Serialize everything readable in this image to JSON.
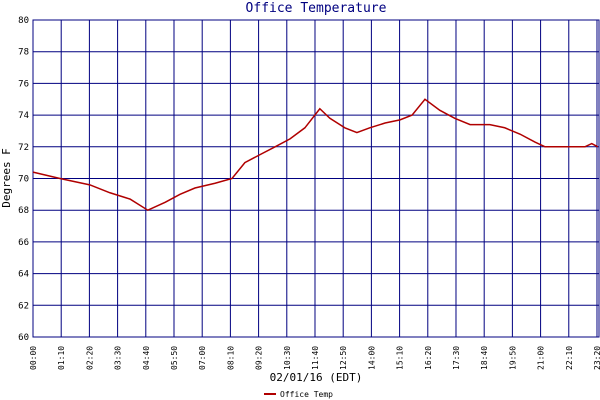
{
  "chart_data": {
    "type": "line",
    "title": "Office Temperature",
    "y_label": "Degrees F",
    "x_label": "02/01/16 (EDT)",
    "x": [
      0,
      67,
      141,
      191,
      241,
      285,
      328,
      365,
      402,
      452,
      494,
      526,
      563,
      601,
      638,
      675,
      712,
      737,
      774,
      804,
      836,
      874,
      911,
      941,
      973,
      1010,
      1047,
      1085,
      1134,
      1171,
      1209,
      1246,
      1271,
      1370,
      1387,
      1402
    ],
    "series": [
      {
        "name": "Office Temp",
        "color": "#b00000",
        "values": [
          70.4,
          70.0,
          69.6,
          69.1,
          68.7,
          68.0,
          68.5,
          69.0,
          69.4,
          69.7,
          70.0,
          71.0,
          71.5,
          72.0,
          72.5,
          73.2,
          74.4,
          73.8,
          73.2,
          72.9,
          73.2,
          73.5,
          73.7,
          74.0,
          75.0,
          74.3,
          73.8,
          73.4,
          73.4,
          73.2,
          72.8,
          72.3,
          72.0,
          72.0,
          72.2,
          72.0
        ]
      }
    ],
    "xlim": [
      0,
      1405
    ],
    "xticks": [
      {
        "value": 0,
        "label": "00:00"
      },
      {
        "value": 70,
        "label": "01:10"
      },
      {
        "value": 140,
        "label": "02:20"
      },
      {
        "value": 210,
        "label": "03:30"
      },
      {
        "value": 280,
        "label": "04:40"
      },
      {
        "value": 350,
        "label": "05:50"
      },
      {
        "value": 420,
        "label": "07:00"
      },
      {
        "value": 490,
        "label": "08:10"
      },
      {
        "value": 560,
        "label": "09:20"
      },
      {
        "value": 630,
        "label": "10:30"
      },
      {
        "value": 700,
        "label": "11:40"
      },
      {
        "value": 770,
        "label": "12:50"
      },
      {
        "value": 840,
        "label": "14:00"
      },
      {
        "value": 910,
        "label": "15:10"
      },
      {
        "value": 980,
        "label": "16:20"
      },
      {
        "value": 1050,
        "label": "17:30"
      },
      {
        "value": 1120,
        "label": "18:40"
      },
      {
        "value": 1190,
        "label": "19:50"
      },
      {
        "value": 1260,
        "label": "21:00"
      },
      {
        "value": 1330,
        "label": "22:10"
      },
      {
        "value": 1400,
        "label": "23:20"
      }
    ],
    "ylim": [
      60,
      80
    ],
    "yticks": [
      60,
      62,
      64,
      66,
      68,
      70,
      72,
      74,
      76,
      78,
      80
    ],
    "grid": true,
    "grid_color": "#000080",
    "legend": "bottom-left"
  }
}
